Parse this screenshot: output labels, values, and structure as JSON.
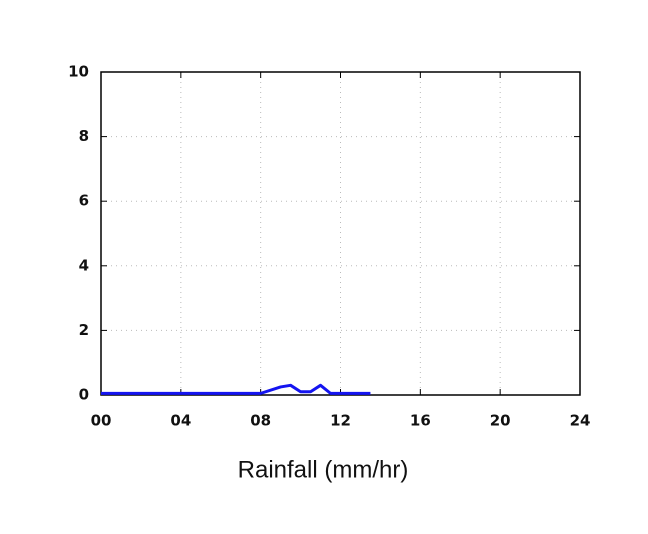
{
  "chart_data": {
    "type": "line",
    "xlabel": "Rainfall (mm/hr)",
    "x": [
      0,
      8,
      9,
      9.5,
      10,
      10.5,
      11,
      11.5,
      13.5
    ],
    "series": [
      {
        "color": "#1414f0",
        "values": [
          0.05,
          0.05,
          0.25,
          0.3,
          0.1,
          0.1,
          0.3,
          0.05,
          0.05
        ]
      }
    ],
    "xlim": [
      0,
      24
    ],
    "xticks": [
      {
        "value": 0,
        "label": "00"
      },
      {
        "value": 4,
        "label": "04"
      },
      {
        "value": 8,
        "label": "08"
      },
      12,
      16,
      20,
      24
    ],
    "ylim": [
      0,
      10
    ],
    "yticks": [
      0,
      2,
      4,
      6,
      8,
      10
    ],
    "grid": true
  }
}
